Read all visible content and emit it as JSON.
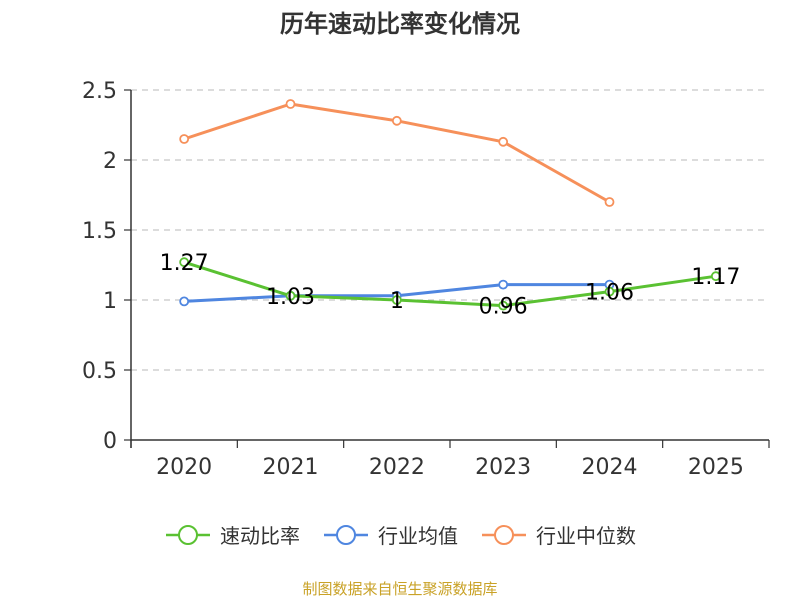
{
  "chart_data": {
    "type": "line",
    "title": "历年速动比率变化情况",
    "categories": [
      "2020",
      "2021",
      "2022",
      "2023",
      "2024",
      "2025"
    ],
    "ylim": [
      0,
      2.5
    ],
    "yticks": [
      "0",
      "0.5",
      "1",
      "1.5",
      "2",
      "2.5"
    ],
    "grid": true,
    "legend_position": "bottom",
    "series": [
      {
        "name": "速动比率",
        "color": "#5ac132",
        "values": [
          1.27,
          1.03,
          1.0,
          0.96,
          1.06,
          1.17
        ],
        "labels": [
          "1.27",
          "1.03",
          "1",
          "0.96",
          "1.06",
          "1.17"
        ]
      },
      {
        "name": "行业均值",
        "color": "#4f86e0",
        "values": [
          0.99,
          1.03,
          1.03,
          1.11,
          1.11,
          null
        ]
      },
      {
        "name": "行业中位数",
        "color": "#f6905a",
        "values": [
          2.15,
          2.4,
          2.28,
          2.13,
          1.7,
          null
        ]
      }
    ]
  },
  "source": {
    "text": "制图数据来自恒生聚源数据库",
    "color": "#c9a227"
  }
}
